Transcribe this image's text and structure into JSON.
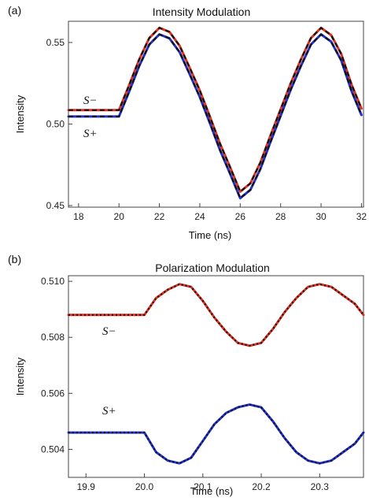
{
  "chart_data": [
    {
      "panel_label": "(a)",
      "type": "line",
      "title": "Intensity Modulation",
      "xlabel": "Time (ns)",
      "ylabel": "Intensity",
      "xlim": [
        17.5,
        32.1
      ],
      "ylim": [
        0.449,
        0.563
      ],
      "xticks": [
        18,
        20,
        22,
        24,
        26,
        28,
        30,
        32
      ],
      "yticks": [
        0.45,
        0.5,
        0.55
      ],
      "ytick_labels": [
        "0.45",
        "0.50",
        "0.55"
      ],
      "grid": false,
      "series": [
        {
          "name": "S−",
          "color": "#e03020",
          "x": [
            17.5,
            20.0,
            20.5,
            21.0,
            21.5,
            22.0,
            22.5,
            23.0,
            23.5,
            24.0,
            24.5,
            25.0,
            25.5,
            26.0,
            26.5,
            27.0,
            27.5,
            28.0,
            28.5,
            29.0,
            29.5,
            30.0,
            30.5,
            31.0,
            31.5,
            32.0
          ],
          "y": [
            0.5085,
            0.5085,
            0.5238,
            0.5395,
            0.5527,
            0.559,
            0.5565,
            0.548,
            0.5345,
            0.5205,
            0.5045,
            0.488,
            0.4735,
            0.4585,
            0.4636,
            0.4765,
            0.493,
            0.509,
            0.525,
            0.5395,
            0.5527,
            0.559,
            0.5545,
            0.543,
            0.5245,
            0.5095
          ]
        },
        {
          "name": "S+",
          "color": "#2030d0",
          "x": [
            17.5,
            20.0,
            20.5,
            21.0,
            21.5,
            22.0,
            22.5,
            23.0,
            23.5,
            24.0,
            24.5,
            25.0,
            25.5,
            26.0,
            26.5,
            27.0,
            27.5,
            28.0,
            28.5,
            29.0,
            29.5,
            30.0,
            30.5,
            31.0,
            31.5,
            32.0
          ],
          "y": [
            0.5046,
            0.5046,
            0.5198,
            0.5355,
            0.5487,
            0.555,
            0.5525,
            0.544,
            0.5305,
            0.5165,
            0.5005,
            0.484,
            0.4695,
            0.4545,
            0.4596,
            0.4725,
            0.489,
            0.505,
            0.521,
            0.5355,
            0.5487,
            0.555,
            0.5505,
            0.539,
            0.5205,
            0.5055
          ]
        }
      ],
      "fit_style": "black dashed overlay on each series"
    },
    {
      "panel_label": "(b)",
      "type": "line",
      "title": "Polarization Modulation",
      "xlabel": "Time (ns)",
      "ylabel": "Intensity",
      "xlim": [
        19.87,
        20.375
      ],
      "ylim": [
        0.503,
        0.5102
      ],
      "xticks": [
        19.9,
        20.0,
        20.1,
        20.2,
        20.3
      ],
      "xtick_labels": [
        "19.9",
        "20.0",
        "20.1",
        "20.2",
        "20.3"
      ],
      "yticks": [
        0.504,
        0.506,
        0.508,
        0.51
      ],
      "ytick_labels": [
        "0.504",
        "0.506",
        "0.508",
        "0.510"
      ],
      "grid": false,
      "series": [
        {
          "name": "S−",
          "color": "#e03020",
          "x": [
            19.87,
            20.0,
            20.02,
            20.04,
            20.06,
            20.08,
            20.1,
            20.12,
            20.14,
            20.16,
            20.18,
            20.2,
            20.22,
            20.24,
            20.26,
            20.28,
            20.3,
            20.32,
            20.34,
            20.36,
            20.375
          ],
          "y": [
            0.5088,
            0.5088,
            0.5094,
            0.5097,
            0.5099,
            0.5098,
            0.5093,
            0.5087,
            0.5082,
            0.5078,
            0.5077,
            0.5078,
            0.5083,
            0.5089,
            0.5094,
            0.5098,
            0.5099,
            0.5098,
            0.5095,
            0.5092,
            0.5088
          ]
        },
        {
          "name": "S+",
          "color": "#2030d0",
          "x": [
            19.87,
            20.0,
            20.02,
            20.04,
            20.06,
            20.08,
            20.1,
            20.12,
            20.14,
            20.16,
            20.18,
            20.2,
            20.22,
            20.24,
            20.26,
            20.28,
            20.3,
            20.32,
            20.34,
            20.36,
            20.375
          ],
          "y": [
            0.5046,
            0.5046,
            0.5039,
            0.5036,
            0.5035,
            0.5037,
            0.5043,
            0.5049,
            0.5053,
            0.5055,
            0.5056,
            0.5055,
            0.505,
            0.5044,
            0.5039,
            0.5036,
            0.5035,
            0.5036,
            0.5039,
            0.5042,
            0.5046
          ]
        }
      ],
      "fit_style": "black dotted overlay on each series"
    }
  ]
}
